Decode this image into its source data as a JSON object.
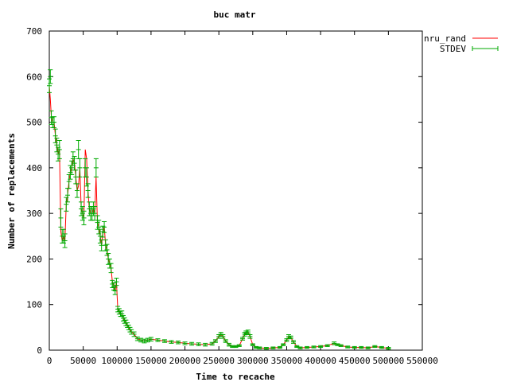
{
  "chart_data": {
    "type": "line",
    "title": "buc matr",
    "xlabel": "Time to recache",
    "ylabel": "Number of replacements",
    "xlim": [
      0,
      550000
    ],
    "ylim": [
      0,
      700
    ],
    "x_ticks": [
      0,
      50000,
      100000,
      150000,
      200000,
      250000,
      300000,
      350000,
      400000,
      450000,
      500000,
      550000
    ],
    "x_tick_labels": [
      "0",
      "50000",
      "100000",
      "150000",
      "200000",
      "250000",
      "300000",
      "350000",
      "400000",
      "450000",
      "500000",
      "550000"
    ],
    "y_ticks": [
      0,
      100,
      200,
      300,
      400,
      500,
      600,
      700
    ],
    "y_tick_labels": [
      "0",
      "100",
      "200",
      "300",
      "400",
      "500",
      "600",
      "700"
    ],
    "legend_position": "top-right",
    "series": [
      {
        "name": "nru_rand",
        "style": "line",
        "color": "#ff0000",
        "x": [
          0,
          1500,
          3000,
          5000,
          7000,
          9000,
          11000,
          13000,
          15000,
          17000,
          19000,
          21000,
          23000,
          25000,
          27000,
          29000,
          31000,
          33000,
          35000,
          37000,
          39000,
          41000,
          43000,
          45000,
          47000,
          49000,
          51000,
          53000,
          55000,
          57000,
          59000,
          61000,
          63000,
          65000,
          67000,
          69000,
          71000,
          73000,
          75000,
          77000,
          79000,
          81000,
          83000,
          85000,
          87000,
          89000,
          91000,
          93000,
          95000,
          97000,
          99000,
          101000,
          103000,
          105000,
          107000,
          109000,
          111000,
          113000,
          115000,
          117000,
          119000,
          121000,
          125000,
          130000,
          135000,
          140000,
          145000,
          150000,
          160000,
          170000,
          180000,
          190000,
          200000,
          210000,
          220000,
          230000,
          240000,
          245000,
          250000,
          253000,
          256000,
          260000,
          265000,
          270000,
          275000,
          280000,
          285000,
          288000,
          290000,
          293000,
          296000,
          300000,
          305000,
          310000,
          320000,
          330000,
          340000,
          345000,
          350000,
          353000,
          356000,
          360000,
          365000,
          370000,
          380000,
          390000,
          400000,
          410000,
          420000,
          425000,
          430000,
          440000,
          450000,
          460000,
          470000,
          480000,
          490000,
          500000
        ],
        "y": [
          580,
          550,
          510,
          500,
          500,
          470,
          450,
          430,
          440,
          260,
          240,
          250,
          240,
          320,
          340,
          370,
          390,
          400,
          420,
          410,
          380,
          350,
          360,
          400,
          310,
          300,
          290,
          440,
          420,
          350,
          310,
          300,
          300,
          310,
          300,
          380,
          280,
          270,
          250,
          230,
          260,
          270,
          230,
          220,
          200,
          190,
          180,
          150,
          140,
          130,
          150,
          90,
          85,
          80,
          80,
          70,
          65,
          60,
          55,
          50,
          45,
          40,
          35,
          25,
          22,
          20,
          22,
          24,
          22,
          20,
          18,
          17,
          15,
          14,
          13,
          12,
          14,
          20,
          30,
          35,
          30,
          20,
          12,
          8,
          8,
          10,
          25,
          35,
          38,
          40,
          30,
          12,
          6,
          5,
          4,
          5,
          6,
          12,
          22,
          30,
          28,
          18,
          8,
          5,
          6,
          7,
          8,
          10,
          15,
          12,
          10,
          7,
          6,
          6,
          5,
          8,
          6,
          4
        ]
      },
      {
        "name": "STDEV",
        "style": "points-errorbars",
        "color": "#00aa00",
        "x": [
          0,
          1500,
          3000,
          5000,
          7000,
          9000,
          11000,
          13000,
          15000,
          17000,
          19000,
          21000,
          23000,
          25000,
          27000,
          29000,
          31000,
          33000,
          35000,
          37000,
          39000,
          41000,
          43000,
          45000,
          47000,
          49000,
          51000,
          53000,
          55000,
          57000,
          59000,
          61000,
          63000,
          65000,
          67000,
          69000,
          71000,
          73000,
          75000,
          77000,
          79000,
          81000,
          83000,
          85000,
          87000,
          89000,
          91000,
          93000,
          95000,
          97000,
          99000,
          101000,
          103000,
          105000,
          107000,
          109000,
          111000,
          113000,
          115000,
          117000,
          119000,
          121000,
          125000,
          130000,
          135000,
          140000,
          145000,
          150000,
          160000,
          170000,
          180000,
          190000,
          200000,
          210000,
          220000,
          230000,
          240000,
          245000,
          250000,
          253000,
          256000,
          260000,
          265000,
          270000,
          275000,
          280000,
          285000,
          288000,
          290000,
          293000,
          296000,
          300000,
          305000,
          310000,
          320000,
          330000,
          340000,
          345000,
          350000,
          353000,
          356000,
          360000,
          365000,
          370000,
          380000,
          390000,
          400000,
          410000,
          420000,
          425000,
          430000,
          440000,
          450000,
          460000,
          470000,
          480000,
          490000,
          500000
        ],
        "y": [
          580,
          600,
          510,
          500,
          500,
          470,
          450,
          430,
          440,
          290,
          250,
          250,
          240,
          320,
          340,
          370,
          390,
          400,
          420,
          410,
          380,
          350,
          440,
          400,
          310,
          300,
          290,
          400,
          380,
          350,
          310,
          300,
          300,
          310,
          300,
          400,
          280,
          270,
          250,
          230,
          260,
          270,
          230,
          220,
          200,
          190,
          180,
          145,
          140,
          130,
          150,
          90,
          85,
          80,
          80,
          70,
          65,
          60,
          55,
          50,
          45,
          40,
          35,
          25,
          22,
          20,
          22,
          24,
          22,
          20,
          18,
          17,
          15,
          14,
          13,
          12,
          14,
          20,
          30,
          35,
          30,
          20,
          12,
          8,
          8,
          10,
          25,
          35,
          38,
          40,
          30,
          12,
          6,
          5,
          4,
          5,
          6,
          12,
          22,
          30,
          28,
          18,
          8,
          5,
          6,
          7,
          8,
          10,
          15,
          12,
          10,
          7,
          6,
          6,
          5,
          8,
          6,
          4
        ],
        "error": [
          15,
          15,
          15,
          12,
          12,
          15,
          15,
          15,
          20,
          20,
          15,
          15,
          15,
          15,
          15,
          15,
          15,
          15,
          15,
          15,
          15,
          15,
          20,
          20,
          15,
          15,
          15,
          20,
          20,
          15,
          15,
          15,
          15,
          15,
          15,
          20,
          15,
          15,
          15,
          12,
          12,
          12,
          12,
          12,
          12,
          10,
          10,
          8,
          8,
          8,
          8,
          6,
          6,
          6,
          6,
          6,
          6,
          6,
          5,
          5,
          5,
          5,
          5,
          4,
          4,
          4,
          4,
          4,
          3,
          3,
          3,
          3,
          3,
          3,
          3,
          3,
          3,
          3,
          4,
          4,
          4,
          3,
          3,
          2,
          2,
          2,
          3,
          4,
          4,
          4,
          4,
          2,
          2,
          2,
          2,
          2,
          2,
          2,
          3,
          4,
          3,
          3,
          2,
          2,
          2,
          2,
          2,
          2,
          3,
          2,
          2,
          2,
          2,
          2,
          2,
          2,
          2,
          2
        ]
      }
    ]
  }
}
